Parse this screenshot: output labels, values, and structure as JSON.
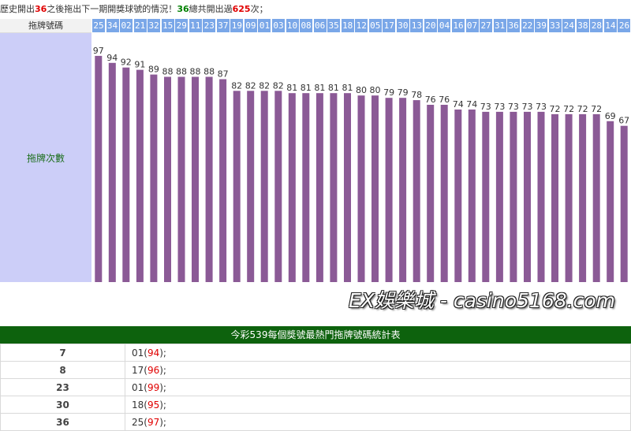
{
  "intro": {
    "prefix": "歷史開出",
    "number": "36",
    "middle": "之後拖出下一期開獎球號的情況！",
    "number2": "36",
    "mid2": "總共開出過",
    "total": "625",
    "suffix": "次；"
  },
  "header_label": "拖牌號碼",
  "side_label": "拖牌次數",
  "watermark": "EX娛樂城 - casino5168.com",
  "colors": {
    "bar": "#8b5a96",
    "header_blue": "#7aa7e8",
    "side_bg": "#cccef8",
    "table_header": "#0d620d",
    "highlight": "#e00000"
  },
  "chart_data": {
    "type": "bar",
    "categories": [
      "25",
      "34",
      "02",
      "21",
      "32",
      "15",
      "29",
      "11",
      "23",
      "37",
      "19",
      "09",
      "01",
      "03",
      "10",
      "08",
      "06",
      "35",
      "18",
      "12",
      "05",
      "17",
      "30",
      "13",
      "20",
      "04",
      "16",
      "07",
      "27",
      "31",
      "36",
      "22",
      "39",
      "33",
      "24",
      "38",
      "28",
      "14",
      "26"
    ],
    "values": [
      97,
      94,
      92,
      91,
      89,
      88,
      88,
      88,
      88,
      87,
      82,
      82,
      82,
      82,
      81,
      81,
      81,
      81,
      81,
      80,
      80,
      79,
      79,
      78,
      76,
      76,
      74,
      74,
      73,
      73,
      73,
      73,
      73,
      72,
      72,
      72,
      72,
      69,
      67
    ],
    "ylim": [
      0,
      100
    ]
  },
  "stats": {
    "title": "今彩539每個獎號最熱門拖牌號碼統計表",
    "rows": [
      {
        "key": "7",
        "num": "01",
        "count": "94"
      },
      {
        "key": "8",
        "num": "17",
        "count": "96"
      },
      {
        "key": "23",
        "num": "01",
        "count": "99"
      },
      {
        "key": "30",
        "num": "18",
        "count": "95"
      },
      {
        "key": "36",
        "num": "25",
        "count": "97"
      }
    ]
  }
}
